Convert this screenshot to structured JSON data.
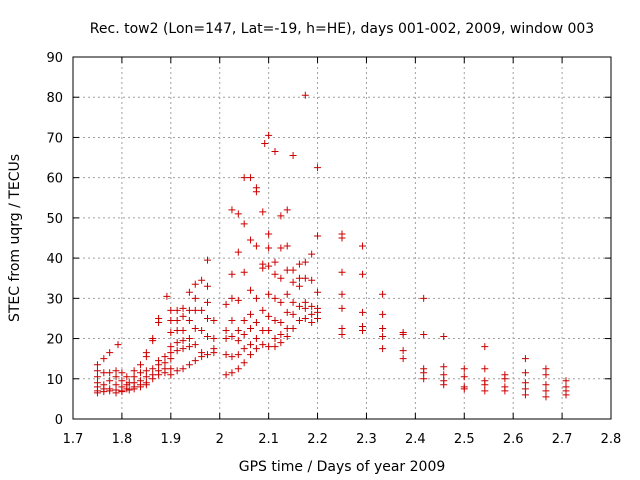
{
  "chart_data": {
    "type": "scatter",
    "title": "Rec. tow2 (Lon=147, Lat=-19, h=HE), days 001-002, 2009, window 003",
    "xlabel": "GPS time / Days of year 2009",
    "ylabel": "STEC from uqrg / TECUs",
    "xlim": [
      1.7,
      2.8
    ],
    "ylim": [
      0,
      90
    ],
    "x_ticks": [
      "1.7",
      "1.8",
      "1.9",
      "2",
      "2.1",
      "2.2",
      "2.3",
      "2.4",
      "2.5",
      "2.6",
      "2.7",
      "2.8"
    ],
    "y_ticks": [
      "0",
      "10",
      "20",
      "30",
      "40",
      "50",
      "60",
      "70",
      "80",
      "90"
    ],
    "grid": true,
    "marker": "plus",
    "color": "#cc0000",
    "points": [
      [
        1.75,
        13.5
      ],
      [
        1.75,
        12.0
      ],
      [
        1.75,
        10.5
      ],
      [
        1.75,
        9.0
      ],
      [
        1.75,
        8.0
      ],
      [
        1.75,
        7.0
      ],
      [
        1.75,
        6.5
      ],
      [
        1.763,
        15.0
      ],
      [
        1.763,
        11.5
      ],
      [
        1.763,
        8.5
      ],
      [
        1.763,
        7.5
      ],
      [
        1.763,
        6.8
      ],
      [
        1.775,
        16.5
      ],
      [
        1.775,
        11.5
      ],
      [
        1.775,
        9.5
      ],
      [
        1.775,
        7.5
      ],
      [
        1.775,
        7.0
      ],
      [
        1.788,
        12.0
      ],
      [
        1.788,
        10.5
      ],
      [
        1.788,
        8.5
      ],
      [
        1.788,
        7.2
      ],
      [
        1.788,
        6.5
      ],
      [
        1.792,
        18.5
      ],
      [
        1.8,
        11.5
      ],
      [
        1.8,
        9.5
      ],
      [
        1.8,
        8.0
      ],
      [
        1.8,
        7.0
      ],
      [
        1.8,
        6.8
      ],
      [
        1.81,
        10.5
      ],
      [
        1.81,
        8.5
      ],
      [
        1.81,
        7.5
      ],
      [
        1.815,
        9.0
      ],
      [
        1.815,
        7.2
      ],
      [
        1.825,
        12.0
      ],
      [
        1.825,
        10.5
      ],
      [
        1.825,
        9.0
      ],
      [
        1.825,
        8.0
      ],
      [
        1.825,
        7.5
      ],
      [
        1.838,
        13.5
      ],
      [
        1.838,
        11.5
      ],
      [
        1.838,
        9.5
      ],
      [
        1.838,
        8.5
      ],
      [
        1.838,
        8.0
      ],
      [
        1.85,
        16.5
      ],
      [
        1.85,
        15.5
      ],
      [
        1.85,
        12.0
      ],
      [
        1.85,
        10.5
      ],
      [
        1.85,
        9.0
      ],
      [
        1.85,
        8.5
      ],
      [
        1.863,
        20.0
      ],
      [
        1.863,
        19.5
      ],
      [
        1.863,
        12.5
      ],
      [
        1.863,
        11.0
      ],
      [
        1.863,
        10.0
      ],
      [
        1.875,
        25.0
      ],
      [
        1.875,
        24.0
      ],
      [
        1.875,
        14.5
      ],
      [
        1.875,
        13.5
      ],
      [
        1.875,
        12.0
      ],
      [
        1.875,
        11.0
      ],
      [
        1.888,
        15.5
      ],
      [
        1.888,
        14.0
      ],
      [
        1.888,
        12.5
      ],
      [
        1.888,
        11.5
      ],
      [
        1.892,
        30.5
      ],
      [
        1.9,
        27.0
      ],
      [
        1.9,
        24.5
      ],
      [
        1.9,
        21.5
      ],
      [
        1.9,
        18.0
      ],
      [
        1.9,
        16.5
      ],
      [
        1.9,
        15.0
      ],
      [
        1.9,
        12.5
      ],
      [
        1.9,
        11.0
      ],
      [
        1.913,
        27.0
      ],
      [
        1.913,
        24.5
      ],
      [
        1.913,
        22.0
      ],
      [
        1.913,
        19.0
      ],
      [
        1.913,
        17.0
      ],
      [
        1.913,
        12.0
      ],
      [
        1.925,
        27.5
      ],
      [
        1.925,
        25.5
      ],
      [
        1.925,
        22.0
      ],
      [
        1.925,
        19.5
      ],
      [
        1.925,
        17.5
      ],
      [
        1.925,
        12.5
      ],
      [
        1.938,
        31.5
      ],
      [
        1.938,
        27.0
      ],
      [
        1.938,
        24.5
      ],
      [
        1.938,
        20.0
      ],
      [
        1.938,
        18.0
      ],
      [
        1.938,
        13.5
      ],
      [
        1.95,
        33.5
      ],
      [
        1.95,
        30.0
      ],
      [
        1.95,
        27.0
      ],
      [
        1.95,
        22.5
      ],
      [
        1.95,
        18.5
      ],
      [
        1.95,
        14.5
      ],
      [
        1.963,
        34.5
      ],
      [
        1.963,
        27.0
      ],
      [
        1.963,
        22.0
      ],
      [
        1.963,
        16.5
      ],
      [
        1.963,
        15.5
      ],
      [
        1.975,
        39.5
      ],
      [
        1.975,
        33.0
      ],
      [
        1.975,
        29.0
      ],
      [
        1.975,
        25.0
      ],
      [
        1.975,
        20.5
      ],
      [
        1.975,
        16.0
      ],
      [
        1.988,
        24.5
      ],
      [
        1.988,
        20.0
      ],
      [
        1.988,
        17.5
      ],
      [
        1.988,
        16.5
      ],
      [
        2.013,
        28.5
      ],
      [
        2.013,
        22.0
      ],
      [
        2.013,
        20.0
      ],
      [
        2.013,
        16.0
      ],
      [
        2.013,
        11.0
      ],
      [
        2.025,
        52.0
      ],
      [
        2.025,
        36.0
      ],
      [
        2.025,
        30.0
      ],
      [
        2.025,
        24.5
      ],
      [
        2.025,
        20.5
      ],
      [
        2.025,
        15.5
      ],
      [
        2.025,
        11.5
      ],
      [
        2.038,
        51.0
      ],
      [
        2.038,
        41.5
      ],
      [
        2.038,
        29.5
      ],
      [
        2.038,
        22.0
      ],
      [
        2.038,
        19.5
      ],
      [
        2.038,
        16.0
      ],
      [
        2.038,
        12.5
      ],
      [
        2.05,
        60.0
      ],
      [
        2.05,
        48.5
      ],
      [
        2.05,
        36.5
      ],
      [
        2.05,
        24.5
      ],
      [
        2.05,
        21.0
      ],
      [
        2.05,
        17.5
      ],
      [
        2.05,
        14.0
      ],
      [
        2.063,
        60.0
      ],
      [
        2.063,
        44.5
      ],
      [
        2.063,
        32.0
      ],
      [
        2.063,
        26.0
      ],
      [
        2.063,
        22.5
      ],
      [
        2.063,
        18.5
      ],
      [
        2.063,
        16.0
      ],
      [
        2.075,
        57.5
      ],
      [
        2.075,
        56.5
      ],
      [
        2.075,
        43.0
      ],
      [
        2.075,
        30.0
      ],
      [
        2.075,
        24.0
      ],
      [
        2.075,
        20.0
      ],
      [
        2.075,
        17.5
      ],
      [
        2.088,
        51.5
      ],
      [
        2.088,
        38.5
      ],
      [
        2.088,
        37.5
      ],
      [
        2.088,
        27.0
      ],
      [
        2.088,
        22.0
      ],
      [
        2.088,
        18.5
      ],
      [
        2.092,
        68.5
      ],
      [
        2.1,
        70.5
      ],
      [
        2.1,
        46.0
      ],
      [
        2.1,
        42.5
      ],
      [
        2.1,
        38.0
      ],
      [
        2.1,
        31.0
      ],
      [
        2.1,
        25.5
      ],
      [
        2.1,
        22.0
      ],
      [
        2.1,
        18.0
      ],
      [
        2.113,
        66.5
      ],
      [
        2.113,
        39.0
      ],
      [
        2.113,
        36.0
      ],
      [
        2.113,
        30.0
      ],
      [
        2.113,
        24.5
      ],
      [
        2.113,
        20.0
      ],
      [
        2.113,
        18.0
      ],
      [
        2.125,
        50.5
      ],
      [
        2.125,
        42.5
      ],
      [
        2.125,
        35.0
      ],
      [
        2.125,
        29.0
      ],
      [
        2.125,
        24.0
      ],
      [
        2.125,
        21.0
      ],
      [
        2.125,
        19.0
      ],
      [
        2.138,
        52.0
      ],
      [
        2.138,
        43.0
      ],
      [
        2.138,
        37.0
      ],
      [
        2.138,
        31.0
      ],
      [
        2.138,
        26.5
      ],
      [
        2.138,
        22.5
      ],
      [
        2.138,
        20.5
      ],
      [
        2.15,
        65.5
      ],
      [
        2.15,
        37.0
      ],
      [
        2.15,
        34.0
      ],
      [
        2.15,
        29.0
      ],
      [
        2.15,
        26.0
      ],
      [
        2.15,
        22.5
      ],
      [
        2.163,
        38.5
      ],
      [
        2.163,
        35.0
      ],
      [
        2.163,
        33.0
      ],
      [
        2.163,
        28.0
      ],
      [
        2.163,
        24.5
      ],
      [
        2.175,
        80.5
      ],
      [
        2.175,
        39.0
      ],
      [
        2.175,
        35.0
      ],
      [
        2.175,
        29.0
      ],
      [
        2.175,
        27.5
      ],
      [
        2.175,
        25.0
      ],
      [
        2.188,
        41.0
      ],
      [
        2.188,
        34.5
      ],
      [
        2.188,
        28.0
      ],
      [
        2.188,
        26.0
      ],
      [
        2.188,
        24.0
      ],
      [
        2.2,
        62.5
      ],
      [
        2.2,
        45.5
      ],
      [
        2.2,
        31.5
      ],
      [
        2.2,
        27.5
      ],
      [
        2.2,
        26.5
      ],
      [
        2.2,
        25.0
      ],
      [
        2.25,
        46.0
      ],
      [
        2.25,
        45.0
      ],
      [
        2.25,
        36.5
      ],
      [
        2.25,
        31.0
      ],
      [
        2.25,
        27.5
      ],
      [
        2.25,
        22.5
      ],
      [
        2.25,
        21.0
      ],
      [
        2.292,
        43.0
      ],
      [
        2.292,
        36.0
      ],
      [
        2.292,
        26.5
      ],
      [
        2.292,
        23.0
      ],
      [
        2.292,
        22.0
      ],
      [
        2.333,
        31.0
      ],
      [
        2.333,
        26.0
      ],
      [
        2.333,
        22.5
      ],
      [
        2.333,
        20.5
      ],
      [
        2.333,
        17.5
      ],
      [
        2.375,
        21.5
      ],
      [
        2.375,
        21.0
      ],
      [
        2.375,
        17.0
      ],
      [
        2.375,
        15.0
      ],
      [
        2.417,
        30.0
      ],
      [
        2.417,
        21.0
      ],
      [
        2.417,
        12.5
      ],
      [
        2.417,
        11.5
      ],
      [
        2.417,
        10.0
      ],
      [
        2.458,
        20.5
      ],
      [
        2.458,
        13.0
      ],
      [
        2.458,
        11.0
      ],
      [
        2.458,
        9.5
      ],
      [
        2.458,
        8.5
      ],
      [
        2.5,
        12.5
      ],
      [
        2.5,
        10.5
      ],
      [
        2.5,
        8.0
      ],
      [
        2.5,
        7.5
      ],
      [
        2.542,
        18.0
      ],
      [
        2.542,
        12.5
      ],
      [
        2.542,
        9.5
      ],
      [
        2.542,
        8.5
      ],
      [
        2.542,
        7.0
      ],
      [
        2.583,
        11.0
      ],
      [
        2.583,
        10.0
      ],
      [
        2.583,
        8.0
      ],
      [
        2.583,
        7.0
      ],
      [
        2.625,
        15.0
      ],
      [
        2.625,
        11.5
      ],
      [
        2.625,
        9.0
      ],
      [
        2.625,
        7.5
      ],
      [
        2.625,
        6.0
      ],
      [
        2.667,
        12.5
      ],
      [
        2.667,
        11.0
      ],
      [
        2.667,
        8.5
      ],
      [
        2.667,
        7.0
      ],
      [
        2.667,
        5.5
      ],
      [
        2.708,
        9.5
      ],
      [
        2.708,
        8.0
      ],
      [
        2.708,
        7.0
      ],
      [
        2.708,
        6.0
      ]
    ]
  }
}
